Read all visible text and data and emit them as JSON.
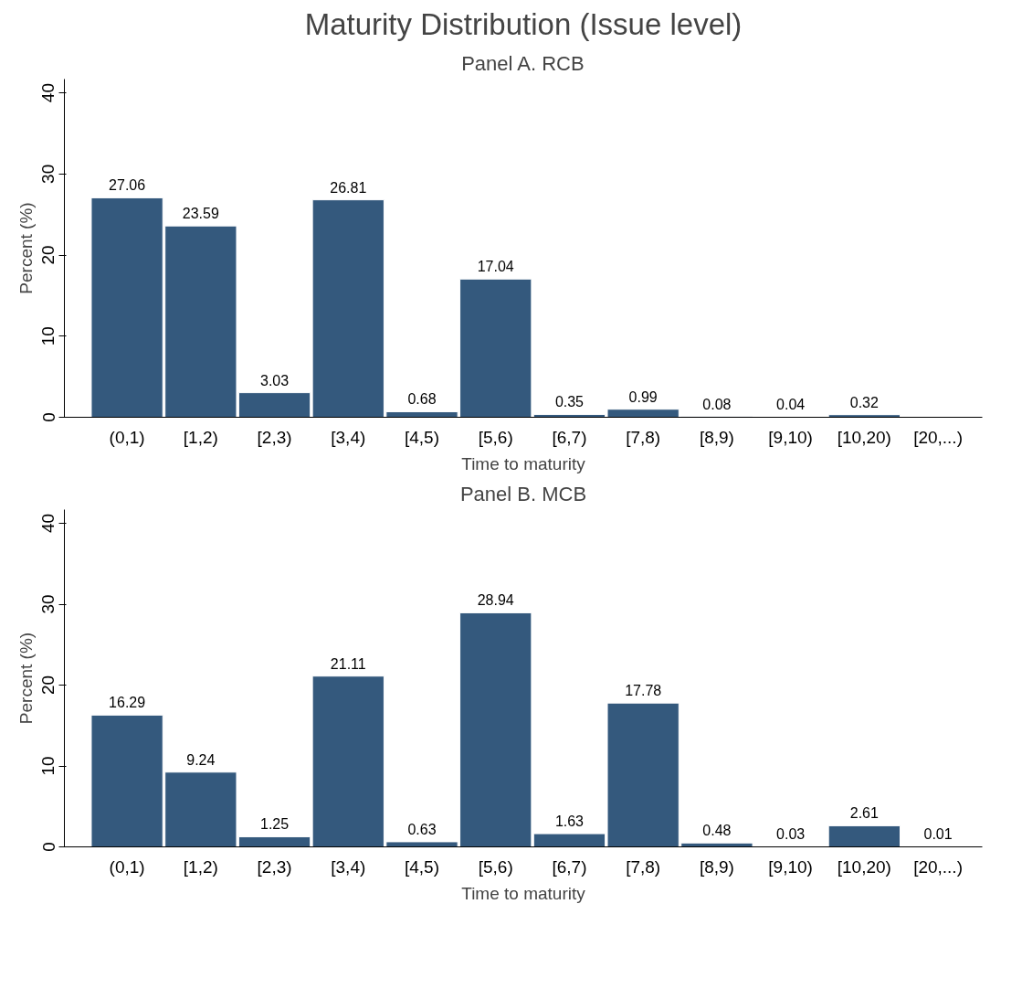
{
  "chart_data": [
    {
      "type": "bar",
      "title": "Maturity Distribution (Issue level)",
      "subtitle": "Panel A. RCB",
      "xlabel": "Time to maturity",
      "ylabel": "Percent (%)",
      "categories": [
        "(0,1)",
        "[1,2)",
        "[2,3)",
        "[3,4)",
        "[4,5)",
        "[5,6)",
        "[6,7)",
        "[7,8)",
        "[8,9)",
        "[9,10)",
        "[10,20)",
        "[20,...)"
      ],
      "values": [
        27.06,
        23.59,
        3.03,
        26.81,
        0.68,
        17.04,
        0.35,
        0.99,
        0.08,
        0.04,
        0.32,
        null
      ],
      "color": "#34597d",
      "data_labels": true,
      "ylim": [
        0,
        41.7
      ],
      "yticks": [
        0,
        10,
        20,
        30,
        40
      ],
      "grid": false
    },
    {
      "type": "bar",
      "subtitle": "Panel B. MCB",
      "xlabel": "Time to maturity",
      "ylabel": "Percent (%)",
      "categories": [
        "(0,1)",
        "[1,2)",
        "[2,3)",
        "[3,4)",
        "[4,5)",
        "[5,6)",
        "[6,7)",
        "[7,8)",
        "[8,9)",
        "[9,10)",
        "[10,20)",
        "[20,...)"
      ],
      "values": [
        16.29,
        9.24,
        1.25,
        21.11,
        0.63,
        28.94,
        1.63,
        17.78,
        0.48,
        0.03,
        2.61,
        0.01
      ],
      "color": "#34597d",
      "data_labels": true,
      "ylim": [
        0,
        41.7
      ],
      "yticks": [
        0,
        10,
        20,
        30,
        40
      ],
      "grid": false
    }
  ]
}
